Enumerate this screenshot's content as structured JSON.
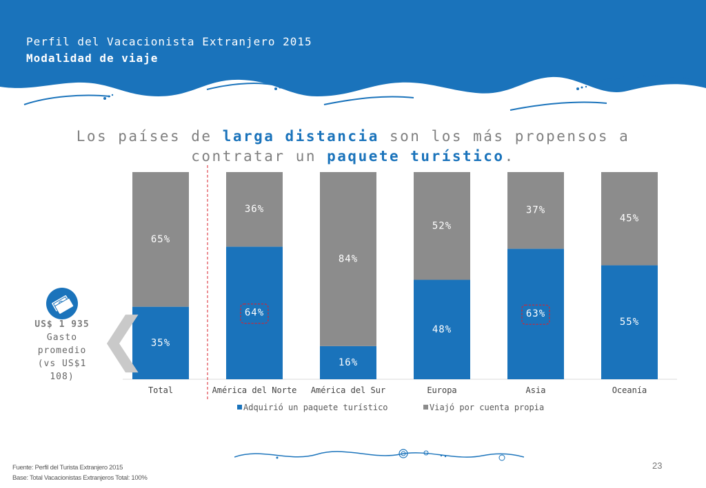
{
  "header": {
    "line1": "Perfil del Vacacionista Extranjero 2015",
    "line2": "Modalidad de viaje",
    "color": "#1a73bb"
  },
  "headline": {
    "part1": "Los países de ",
    "highlight1": "larga distancia",
    "part2": " son los más propensos a contratar un ",
    "highlight2": "paquete turístico",
    "part3": "."
  },
  "spend": {
    "amount": "US$ 1 935",
    "label": "Gasto promedio (vs US$1 108)",
    "icon": "money-stack-icon"
  },
  "chart_data": {
    "type": "bar",
    "stacked": true,
    "categories": [
      "Total",
      "América del Norte",
      "América del Sur",
      "Europa",
      "Asia",
      "Oceanía"
    ],
    "series": [
      {
        "name": "Adquirió un paquete turístico",
        "color": "#1a73bb",
        "values": [
          35,
          64,
          16,
          48,
          63,
          55
        ],
        "labels": [
          "35%",
          "64%",
          "16%",
          "48%",
          "63%",
          "55%"
        ]
      },
      {
        "name": "Viajó por cuenta propia",
        "color": "#8c8c8c",
        "values": [
          65,
          36,
          84,
          52,
          37,
          45
        ],
        "labels": [
          "65%",
          "36%",
          "84%",
          "52%",
          "37%",
          "45%"
        ]
      }
    ],
    "ylim": [
      0,
      100
    ],
    "highlighted": [
      "América del Norte",
      "Asia"
    ],
    "divider_after": "Total",
    "legend_position": "bottom",
    "grid": false
  },
  "footer": {
    "source": "Fuente: Perfil del Turista Extranjero 2015",
    "base": "Base: Total Vacacionistas Extranjeros    Total: 100%",
    "page": "23"
  }
}
